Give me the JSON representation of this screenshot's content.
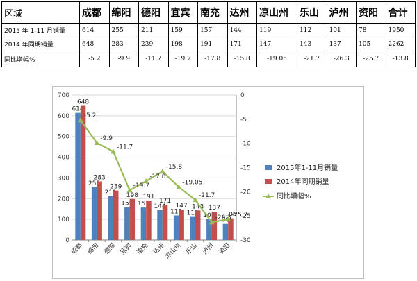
{
  "table": {
    "header": [
      "区域",
      "成都",
      "绵阳",
      "德阳",
      "宜宾",
      "南充",
      "达州",
      "凉山州",
      "乐山",
      "泸州",
      "资阳",
      "合计"
    ],
    "rows": [
      {
        "label": "2015 年 1-11 月销量",
        "cells": [
          "614",
          "255",
          "211",
          "159",
          "157",
          "144",
          "119",
          "112",
          "101",
          "78",
          "1950"
        ]
      },
      {
        "label": "2014 年同期销量",
        "cells": [
          "648",
          "283",
          "239",
          "198",
          "191",
          "171",
          "147",
          "143",
          "137",
          "105",
          "2262"
        ]
      },
      {
        "label": "同比增幅%",
        "cells": [
          "-5.2",
          "-9.9",
          "-11.7",
          "-19.7",
          "-17.8",
          "-15.8",
          "-19.05",
          "-21.7",
          "-26.3",
          "-25.7",
          "-13.8"
        ]
      }
    ]
  },
  "chart_data": {
    "type": "bar",
    "categories": [
      "成都",
      "绵阳",
      "德阳",
      "宜宾",
      "南充",
      "达州",
      "凉山州",
      "乐山",
      "泸州",
      "资阳"
    ],
    "series": [
      {
        "name": "2015年1-11月销量",
        "type": "bar",
        "axis": "left",
        "color": "#4f81bd",
        "values": [
          614,
          255,
          211,
          159,
          157,
          144,
          119,
          112,
          101,
          78
        ]
      },
      {
        "name": "2014年同期销量",
        "type": "bar",
        "axis": "left",
        "color": "#c0504d",
        "values": [
          648,
          283,
          239,
          198,
          191,
          171,
          147,
          143,
          137,
          105
        ]
      },
      {
        "name": "同比增幅%",
        "type": "line",
        "axis": "right",
        "color": "#9bbb59",
        "values": [
          -5.2,
          -9.9,
          -11.7,
          -19.7,
          -17.8,
          -15.8,
          -19.05,
          -21.7,
          -26.3,
          -25.7
        ]
      }
    ],
    "y_left": {
      "range": [
        0,
        700
      ],
      "ticks": [
        0,
        100,
        200,
        300,
        400,
        500,
        600,
        700
      ]
    },
    "y_right": {
      "range": [
        -30,
        0
      ],
      "ticks": [
        0,
        -5,
        -10,
        -15,
        -20,
        -25,
        -30
      ]
    },
    "gridlines": true,
    "legend_position": "right"
  }
}
